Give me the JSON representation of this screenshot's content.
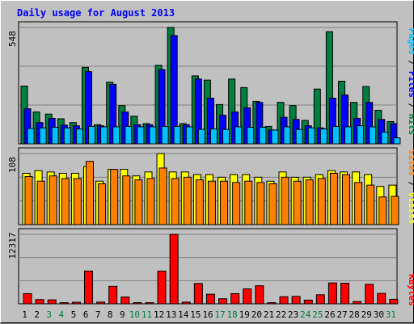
{
  "chart_data": {
    "type": "bar",
    "title": "Daily usage for August 2013",
    "categories": [
      "1",
      "2",
      "3",
      "4",
      "5",
      "6",
      "7",
      "8",
      "9",
      "10",
      "11",
      "12",
      "13",
      "14",
      "15",
      "16",
      "17",
      "18",
      "19",
      "20",
      "21",
      "22",
      "23",
      "24",
      "25",
      "26",
      "27",
      "28",
      "29",
      "30",
      "31"
    ],
    "weekend_days": [
      "3",
      "4",
      "10",
      "11",
      "17",
      "18",
      "24",
      "25",
      "31"
    ],
    "legend": {
      "hits": "Hits",
      "files": "Files",
      "pages": "Pages",
      "visits": "Visits",
      "sites": "Sites",
      "kbytes": "KBytes",
      "separator": "/"
    },
    "panels": [
      {
        "name": "hits-files-pages",
        "ymax_label": "548",
        "ymax": 548,
        "series": [
          {
            "name": "Hits",
            "color": "#008040",
            "values": [
              272,
              150,
              140,
              118,
              100,
              360,
              90,
              290,
              180,
              130,
              95,
              370,
              548,
              95,
              320,
              300,
              185,
              305,
              265,
              200,
              82,
              195,
              180,
              110,
              258,
              528,
              295,
              195,
              270,
              158,
              105
            ]
          },
          {
            "name": "Files",
            "color": "#0000ff",
            "values": [
              165,
              100,
              120,
              88,
              85,
              340,
              85,
              280,
              150,
              90,
              90,
              350,
              510,
              90,
              305,
              215,
              135,
              150,
              170,
              195,
              65,
              125,
              115,
              85,
              75,
              215,
              230,
              120,
              195,
              115,
              95
            ]
          },
          {
            "name": "Pages",
            "color": "#00c0ff",
            "values": [
              72,
              75,
              78,
              75,
              70,
              82,
              80,
              80,
              82,
              80,
              80,
              82,
              82,
              80,
              68,
              70,
              68,
              80,
              78,
              78,
              65,
              80,
              68,
              75,
              70,
              82,
              80,
              85,
              80,
              55,
              28
            ]
          }
        ]
      },
      {
        "name": "visits-sites",
        "ymax_label": "108",
        "ymax": 108,
        "series": [
          {
            "name": "Visits",
            "color": "#ffff00",
            "values": [
              78,
              82,
              80,
              78,
              78,
              88,
              66,
              84,
              84,
              74,
              80,
              108,
              80,
              80,
              76,
              76,
              72,
              76,
              76,
              72,
              66,
              80,
              72,
              72,
              76,
              82,
              80,
              80,
              76,
              58,
              60
            ]
          },
          {
            "name": "Sites",
            "color": "#ff8000",
            "values": [
              73,
              66,
              74,
              70,
              70,
              96,
              62,
              84,
              74,
              68,
              70,
              86,
              70,
              72,
              68,
              66,
              66,
              64,
              66,
              64,
              62,
              72,
              66,
              68,
              70,
              78,
              76,
              64,
              60,
              42,
              43
            ]
          }
        ]
      },
      {
        "name": "kbytes",
        "ymax_label": "12317",
        "ymax": 12317,
        "series": [
          {
            "name": "KBytes",
            "color": "#ff0000",
            "values": [
              1800,
              750,
              700,
              200,
              280,
              5800,
              300,
              3100,
              1200,
              200,
              200,
              5800,
              12317,
              300,
              3600,
              1700,
              900,
              1800,
              2650,
              3200,
              200,
              1250,
              1300,
              650,
              1600,
              3700,
              3650,
              400,
              3450,
              1850,
              800
            ]
          }
        ]
      }
    ]
  }
}
